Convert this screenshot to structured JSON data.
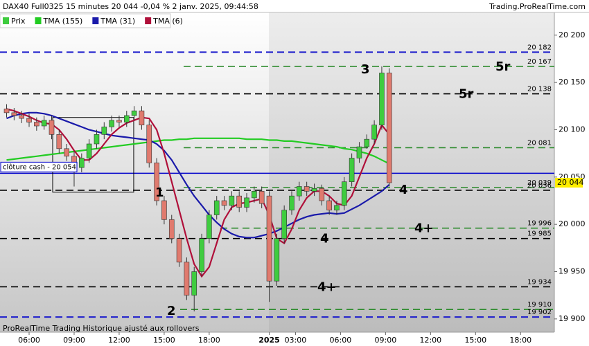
{
  "chart_data": {
    "type": "candlestick",
    "title": "DAX40 Full0325 15 minutes 20 044 -0,04 % 2 janv. 2025, 09:44:58",
    "source": "Trading.ProRealTime.com",
    "footer": "ProRealTime Trading  Historique ajusté aux rollovers",
    "xlim": [
      4.06,
      41
    ],
    "ylim": [
      19886,
      20224
    ],
    "xticks": [
      {
        "value": 6,
        "label": "06:00"
      },
      {
        "value": 9,
        "label": "09:00"
      },
      {
        "value": 12,
        "label": "12:00"
      },
      {
        "value": 15,
        "label": "15:00"
      },
      {
        "value": 18,
        "label": "18:00"
      },
      {
        "value": 22,
        "label": "2025"
      },
      {
        "value": 23.75,
        "label": "03:00"
      },
      {
        "value": 26.75,
        "label": "06:00"
      },
      {
        "value": 29.75,
        "label": "09:00"
      },
      {
        "value": 32.75,
        "label": "12:00"
      },
      {
        "value": 35.75,
        "label": "15:00"
      },
      {
        "value": 38.75,
        "label": "18:00"
      }
    ],
    "yticks": [
      {
        "value": 19900,
        "label": "19 900"
      },
      {
        "value": 19950,
        "label": "19 950"
      },
      {
        "value": 20000,
        "label": "20 000"
      },
      {
        "value": 20050,
        "label": "20 050"
      },
      {
        "value": 20100,
        "label": "20 100"
      },
      {
        "value": 20150,
        "label": "20 150"
      },
      {
        "value": 20200,
        "label": "20 200"
      }
    ],
    "candles": {
      "name": "Prix",
      "up_color": "#3fcc3f",
      "down_color": "#e07a6e",
      "x": [
        4.5,
        5,
        5.5,
        6,
        6.5,
        7,
        7.5,
        8,
        8.5,
        9,
        9.5,
        10,
        10.5,
        11,
        11.5,
        12,
        12.5,
        13,
        13.5,
        14,
        14.5,
        15,
        15.5,
        16,
        16.5,
        17,
        17.5,
        18,
        18.5,
        19,
        19.5,
        20,
        20.5,
        21,
        21.5,
        22,
        22.5,
        23,
        23.5,
        24,
        24.5,
        25,
        25.5,
        26,
        26.5,
        27,
        27.5,
        28,
        28.5,
        29,
        29.5,
        30
      ],
      "open": [
        20122,
        20118,
        20115,
        20112,
        20108,
        20104,
        20110,
        20095,
        20080,
        20072,
        20060,
        20070,
        20085,
        20095,
        20103,
        20110,
        20108,
        20115,
        20120,
        20105,
        20065,
        20025,
        20005,
        19985,
        19960,
        19925,
        19950,
        19985,
        20010,
        20025,
        20020,
        20030,
        20018,
        20028,
        20035,
        20030,
        19940,
        19985,
        20015,
        20030,
        20040,
        20035,
        20038,
        20025,
        20015,
        20020,
        20045,
        20070,
        20082,
        20090,
        20105,
        20160
      ],
      "high": [
        20127,
        20123,
        20120,
        20117,
        20113,
        20115,
        20115,
        20100,
        20085,
        20077,
        20075,
        20090,
        20100,
        20108,
        20115,
        20115,
        20120,
        20125,
        20125,
        20110,
        20070,
        20030,
        20010,
        19990,
        19965,
        19955,
        19990,
        20015,
        20030,
        20030,
        20035,
        20035,
        20033,
        20040,
        20040,
        20035,
        19990,
        20020,
        20035,
        20045,
        20045,
        20043,
        20042,
        20030,
        20025,
        20050,
        20075,
        20087,
        20095,
        20110,
        20167,
        20165
      ],
      "low": [
        20113,
        20110,
        20107,
        20103,
        20099,
        20100,
        20090,
        20075,
        20067,
        20040,
        20055,
        20065,
        20080,
        20090,
        20098,
        20103,
        20103,
        20110,
        20100,
        20060,
        20020,
        20000,
        19980,
        19955,
        19920,
        19908,
        19945,
        19980,
        20005,
        20015,
        20015,
        20013,
        20013,
        20023,
        20017,
        19918,
        19935,
        19980,
        20010,
        20025,
        20030,
        20030,
        20020,
        20010,
        20010,
        20015,
        20040,
        20065,
        20080,
        20085,
        20100,
        20040
      ],
      "close": [
        20118,
        20115,
        20112,
        20108,
        20104,
        20110,
        20095,
        20080,
        20072,
        20060,
        20070,
        20085,
        20095,
        20103,
        20110,
        20108,
        20115,
        20120,
        20105,
        20065,
        20025,
        20005,
        19985,
        19960,
        19925,
        19950,
        19985,
        20010,
        20025,
        20020,
        20030,
        20018,
        20028,
        20035,
        20022,
        19940,
        19985,
        20015,
        20030,
        20040,
        20035,
        20038,
        20025,
        20015,
        20020,
        20045,
        20070,
        20082,
        20090,
        20105,
        20160,
        20044
      ]
    },
    "series": [
      {
        "name": "TMA (155)",
        "color": "#22cc22",
        "values": [
          20068,
          20069,
          20070,
          20071,
          20072,
          20073,
          20074,
          20075,
          20076,
          20077,
          20078,
          20079,
          20080,
          20081,
          20082,
          20083,
          20084,
          20085,
          20086,
          20087,
          20088,
          20089,
          20089,
          20090,
          20090,
          20091,
          20091,
          20091,
          20091,
          20091,
          20091,
          20091,
          20090,
          20090,
          20090,
          20089,
          20089,
          20088,
          20088,
          20087,
          20086,
          20085,
          20084,
          20083,
          20082,
          20080,
          20079,
          20077,
          20075,
          20072,
          20068,
          20064
        ]
      },
      {
        "name": "TMA (31)",
        "color": "#1a1aaa",
        "values": [
          20112,
          20115,
          20117,
          20118,
          20118,
          20117,
          20115,
          20112,
          20109,
          20106,
          20103,
          20100,
          20098,
          20096,
          20094,
          20093,
          20092,
          20091,
          20090,
          20089,
          20085,
          20078,
          20068,
          20055,
          20042,
          20030,
          20020,
          20010,
          20002,
          19995,
          19990,
          19987,
          19986,
          19986,
          19988,
          19990,
          19993,
          19997,
          20001,
          20005,
          20008,
          20010,
          20011,
          20012,
          20011,
          20012,
          20016,
          20020,
          20025,
          20030,
          20035,
          20042
        ]
      },
      {
        "name": "TMA (6)",
        "color": "#b0103a",
        "values": [
          20122,
          20120,
          20117,
          20114,
          20110,
          20107,
          20106,
          20100,
          20090,
          20078,
          20068,
          20068,
          20075,
          20085,
          20095,
          20102,
          20107,
          20110,
          20113,
          20112,
          20100,
          20075,
          20045,
          20015,
          19985,
          19958,
          19945,
          19955,
          19980,
          20005,
          20018,
          20022,
          20023,
          20025,
          20027,
          20010,
          19985,
          19980,
          19995,
          20015,
          20028,
          20035,
          20035,
          20030,
          20022,
          20020,
          20030,
          20050,
          20070,
          20085,
          20105,
          20095
        ]
      }
    ],
    "levels": [
      {
        "value": 20182,
        "label": "20 182",
        "color": "#1a1acc"
      },
      {
        "value": 20167,
        "label": "20 167",
        "color": "#2e8b2e",
        "tag": "5r"
      },
      {
        "value": 20138,
        "label": "20 138",
        "color": "#000000",
        "tag": "5r"
      },
      {
        "value": 20081,
        "label": "20 081",
        "color": "#2e8b2e"
      },
      {
        "value": 20039,
        "label": "20 039",
        "color": "#2e8b2e"
      },
      {
        "value": 20036,
        "label": "20 036",
        "color": "#000000"
      },
      {
        "value": 19996,
        "label": "19 996",
        "color": "#2e8b2e",
        "tag": "4+"
      },
      {
        "value": 19985,
        "label": "19 985",
        "color": "#000000",
        "tag": "4"
      },
      {
        "value": 19934,
        "label": "19 934",
        "color": "#000000",
        "tag": "4+"
      },
      {
        "value": 19910,
        "label": "19 910",
        "color": "#2e8b2e"
      },
      {
        "value": 19902,
        "label": "19 902",
        "color": "#1a1acc"
      }
    ],
    "cash_close": {
      "value": 20054,
      "label": "clôture cash - 20 054",
      "color": "#0000cc"
    },
    "last_price": {
      "value": 20044,
      "label": "20 044",
      "color": "#ffee00"
    },
    "box": {
      "x": [
        7.57,
        12.97
      ],
      "y": [
        20034,
        20113
      ]
    },
    "annotations": [
      "1",
      "2",
      "3",
      "4"
    ]
  }
}
